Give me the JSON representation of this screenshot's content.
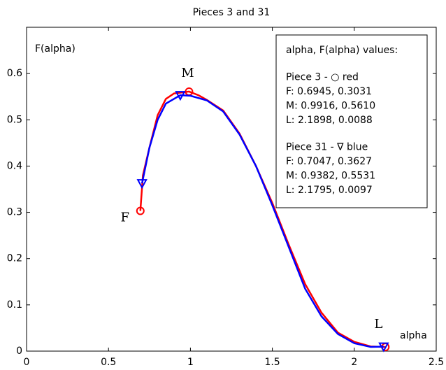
{
  "chart_data": {
    "type": "line",
    "title": "Pieces 3 and 31",
    "y_label": "F(alpha)",
    "x_label": "alpha",
    "xlim": [
      0,
      2.5
    ],
    "xticks": [
      0,
      0.5,
      1,
      1.5,
      2,
      2.5
    ],
    "ylim": [
      0,
      0.7
    ],
    "yticks": [
      0,
      0.1,
      0.2,
      0.3,
      0.4,
      0.5,
      0.6
    ],
    "grid": false,
    "series": [
      {
        "name": "Piece 3",
        "color": "#ff0000",
        "marker": "circle",
        "x": [
          0.6945,
          0.71,
          0.75,
          0.8,
          0.85,
          0.9,
          0.9916,
          1.05,
          1.1,
          1.2,
          1.3,
          1.4,
          1.5,
          1.6,
          1.7,
          1.8,
          1.9,
          2.0,
          2.1,
          2.1898
        ],
        "values": [
          0.3031,
          0.38,
          0.44,
          0.51,
          0.545,
          0.557,
          0.561,
          0.553,
          0.543,
          0.52,
          0.47,
          0.4,
          0.32,
          0.23,
          0.145,
          0.083,
          0.04,
          0.02,
          0.01,
          0.0088
        ],
        "marker_x": [
          0.6945,
          0.9916,
          2.1898
        ],
        "marker_values": [
          0.3031,
          0.561,
          0.0088
        ]
      },
      {
        "name": "Piece 31",
        "color": "#0000ff",
        "marker": "triangle",
        "x": [
          0.7047,
          0.75,
          0.8,
          0.85,
          0.9382,
          1.0,
          1.1,
          1.2,
          1.3,
          1.4,
          1.5,
          1.6,
          1.7,
          1.8,
          1.9,
          2.0,
          2.1,
          2.1795
        ],
        "values": [
          0.3627,
          0.44,
          0.5,
          0.535,
          0.5531,
          0.552,
          0.542,
          0.518,
          0.468,
          0.4,
          0.315,
          0.225,
          0.135,
          0.075,
          0.037,
          0.017,
          0.009,
          0.0097
        ],
        "marker_x": [
          0.7047,
          0.9382,
          2.1795
        ],
        "marker_values": [
          0.3627,
          0.5531,
          0.0097
        ]
      }
    ],
    "point_labels": [
      "F",
      "M",
      "L"
    ],
    "legend_lines": [
      [
        "alpha, F(alpha)  values:"
      ],
      [
        "Piece 3 - ○ red",
        "F:  0.6945, 0.3031",
        "M: 0.9916, 0.5610",
        "L:  2.1898, 0.0088"
      ],
      [
        "Piece 31 - ∇ blue",
        "F:  0.7047, 0.3627",
        "M: 0.9382, 0.5531",
        "L:  2.1795, 0.0097"
      ]
    ]
  }
}
